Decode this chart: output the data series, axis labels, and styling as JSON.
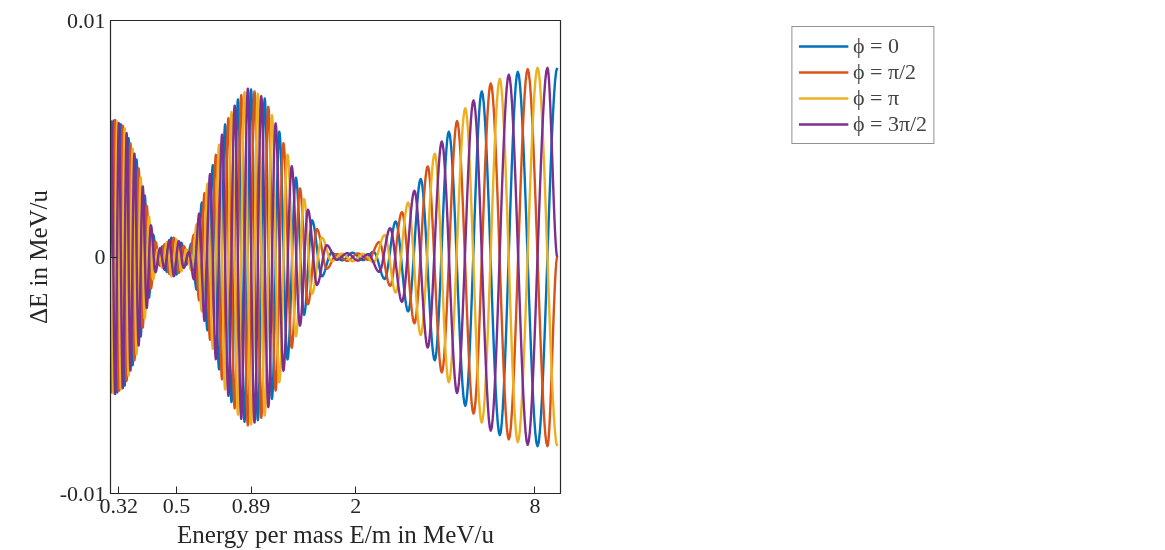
{
  "chart_data": {
    "type": "line",
    "xlabel": "Energy per mass E/m in MeV/u",
    "ylabel": "ΔE in MeV/u",
    "log": "x",
    "xlim": [
      0.3,
      9.75
    ],
    "ylim": [
      -0.01,
      0.01
    ],
    "xticks": [
      0.32,
      0.5,
      0.89,
      2,
      8
    ],
    "yticks": [
      -0.01,
      0,
      0.01
    ],
    "grid": false,
    "legend": "top right",
    "marker": "none",
    "line_style": "solid",
    "series": [
      {
        "name": "ϕ = 0",
        "color": "#0072bd",
        "x": [
          0.3,
          0.307,
          0.316,
          0.325,
          0.335,
          0.345,
          0.356,
          0.367,
          0.379,
          0.391,
          0.404,
          0.417,
          0.432,
          0.448,
          0.464,
          0.481,
          0.5,
          0.519,
          0.539,
          0.561,
          0.584,
          0.608,
          0.635,
          0.662,
          0.695,
          0.728,
          0.765,
          0.804,
          0.846,
          0.89,
          0.938,
          0.989,
          1.046,
          1.107,
          1.18,
          1.259,
          1.341,
          1.427,
          1.539,
          1.658,
          1.8,
          1.952,
          2.118,
          2.298,
          2.502,
          2.724,
          3.001,
          3.306,
          3.686,
          4.109,
          4.668,
          5.302,
          6.096,
          7.007,
          8.164,
          9.512
        ],
        "values": [
          -0.0057,
          0.00576,
          -0.00573,
          0.00561,
          -0.00544,
          0.00502,
          -0.00458,
          0.00412,
          -0.00336,
          0.0026,
          -0.00172,
          0.00095,
          -0.00032,
          0.00045,
          -0.00063,
          0.00082,
          -0.00074,
          0.0006,
          -0.00033,
          0.00057,
          -0.00138,
          0.0023,
          -0.0031,
          0.00388,
          -0.00475,
          0.0056,
          -0.00613,
          0.00666,
          -0.00697,
          0.00708,
          -0.0069,
          0.0067,
          -0.006,
          0.0053,
          -0.00433,
          0.00335,
          -0.00245,
          0.00155,
          -0.00082,
          0.00018,
          -0.00014,
          0.00018,
          -0.00013,
          0.00022,
          -0.00093,
          0.0015,
          -0.0023,
          0.0033,
          -0.00437,
          0.0053,
          -0.00629,
          0.007,
          -0.00753,
          0.00783,
          -0.008,
          0.008
        ]
      },
      {
        "name": "ϕ = π/2",
        "color": "#d95319",
        "x": [
          0.3,
          0.302,
          0.311,
          0.32,
          0.33,
          0.34,
          0.35,
          0.361,
          0.373,
          0.385,
          0.397,
          0.41,
          0.425,
          0.44,
          0.456,
          0.473,
          0.49,
          0.509,
          0.529,
          0.55,
          0.572,
          0.596,
          0.621,
          0.648,
          0.678,
          0.711,
          0.747,
          0.784,
          0.825,
          0.868,
          0.914,
          0.963,
          1.017,
          1.076,
          1.143,
          1.219,
          1.299,
          1.382,
          1.482,
          1.598,
          1.728,
          1.874,
          2.033,
          2.206,
          2.398,
          2.61,
          2.859,
          3.15,
          3.491,
          3.892,
          4.38,
          4.975,
          5.685,
          6.535,
          7.563,
          8.813,
          9.512
        ],
        "values": [
          0,
          -0.00573,
          0.0058,
          -0.00566,
          0.00555,
          -0.00523,
          0.0048,
          -0.00437,
          0.00374,
          -0.00298,
          0.00216,
          -0.00134,
          0.00064,
          -0.00037,
          0.00054,
          -0.00072,
          0.00081,
          -0.00067,
          0.00046,
          -0.00021,
          0.00094,
          -0.00184,
          0.0027,
          -0.0035,
          0.00432,
          -0.00517,
          0.00587,
          -0.0064,
          0.00684,
          -0.00712,
          0.007,
          -0.0068,
          0.00635,
          -0.00565,
          0.00481,
          -0.00384,
          0.0029,
          -0.002,
          0.00118,
          -0.0005,
          0.00012,
          -0.00016,
          0.00015,
          -0.00012,
          0.00063,
          -0.00122,
          0.0019,
          -0.0028,
          0.00383,
          -0.00488,
          0.00575,
          -0.00662,
          0.00734,
          -0.00771,
          0.00794,
          -0.008,
          0
        ]
      },
      {
        "name": "ϕ = π",
        "color": "#edb120",
        "x": [
          0.3,
          0.307,
          0.316,
          0.325,
          0.335,
          0.345,
          0.356,
          0.367,
          0.379,
          0.391,
          0.404,
          0.417,
          0.432,
          0.448,
          0.464,
          0.481,
          0.5,
          0.519,
          0.539,
          0.561,
          0.584,
          0.608,
          0.635,
          0.662,
          0.695,
          0.728,
          0.765,
          0.804,
          0.846,
          0.89,
          0.938,
          0.989,
          1.046,
          1.107,
          1.18,
          1.259,
          1.341,
          1.427,
          1.539,
          1.658,
          1.8,
          1.952,
          2.118,
          2.298,
          2.502,
          2.724,
          3.001,
          3.306,
          3.686,
          4.109,
          4.668,
          5.302,
          6.096,
          7.007,
          8.164,
          9.512
        ],
        "values": [
          0.0057,
          -0.00576,
          0.00573,
          -0.00561,
          0.00544,
          -0.00502,
          0.00458,
          -0.00412,
          0.00336,
          -0.0026,
          0.00172,
          -0.00095,
          0.00032,
          -0.00045,
          0.00063,
          -0.00082,
          0.00074,
          -0.0006,
          0.00033,
          -0.00057,
          0.00138,
          -0.0023,
          0.0031,
          -0.00388,
          0.00475,
          -0.0056,
          0.00613,
          -0.00666,
          0.00697,
          -0.00708,
          0.0069,
          -0.0067,
          0.006,
          -0.0053,
          0.00433,
          -0.00335,
          0.00245,
          -0.00155,
          0.00082,
          -0.00018,
          0.00014,
          -0.00018,
          0.00013,
          -0.00022,
          0.00093,
          -0.0015,
          0.0023,
          -0.0033,
          0.00437,
          -0.0053,
          0.00629,
          -0.007,
          0.00753,
          -0.00783,
          0.008,
          -0.008
        ]
      },
      {
        "name": "ϕ = 3π/2",
        "color": "#7e2f8e",
        "x": [
          0.3,
          0.302,
          0.311,
          0.32,
          0.33,
          0.34,
          0.35,
          0.361,
          0.373,
          0.385,
          0.397,
          0.41,
          0.425,
          0.44,
          0.456,
          0.473,
          0.49,
          0.509,
          0.529,
          0.55,
          0.572,
          0.596,
          0.621,
          0.648,
          0.678,
          0.711,
          0.747,
          0.784,
          0.825,
          0.868,
          0.914,
          0.963,
          1.017,
          1.076,
          1.143,
          1.219,
          1.299,
          1.382,
          1.482,
          1.598,
          1.728,
          1.874,
          2.033,
          2.206,
          2.398,
          2.61,
          2.859,
          3.15,
          3.491,
          3.892,
          4.38,
          4.975,
          5.685,
          6.535,
          7.563,
          8.813,
          9.512
        ],
        "values": [
          0,
          0.00573,
          -0.0058,
          0.00566,
          -0.00555,
          0.00523,
          -0.0048,
          0.00437,
          -0.00374,
          0.00298,
          -0.00216,
          0.00134,
          -0.00064,
          0.00037,
          -0.00054,
          0.00072,
          -0.00081,
          0.00067,
          -0.00046,
          0.00021,
          -0.00094,
          0.00184,
          -0.0027,
          0.0035,
          -0.00432,
          0.00517,
          -0.00587,
          0.0064,
          -0.00684,
          0.00712,
          -0.007,
          0.0068,
          -0.00635,
          0.00565,
          -0.00481,
          0.00384,
          -0.0029,
          0.002,
          -0.00118,
          0.0005,
          -0.00012,
          0.00016,
          -0.00015,
          0.00012,
          -0.00063,
          0.00122,
          -0.0019,
          0.0028,
          -0.00383,
          0.00488,
          -0.00575,
          0.00662,
          -0.00734,
          0.00771,
          -0.00794,
          0.008,
          0
        ]
      }
    ]
  }
}
